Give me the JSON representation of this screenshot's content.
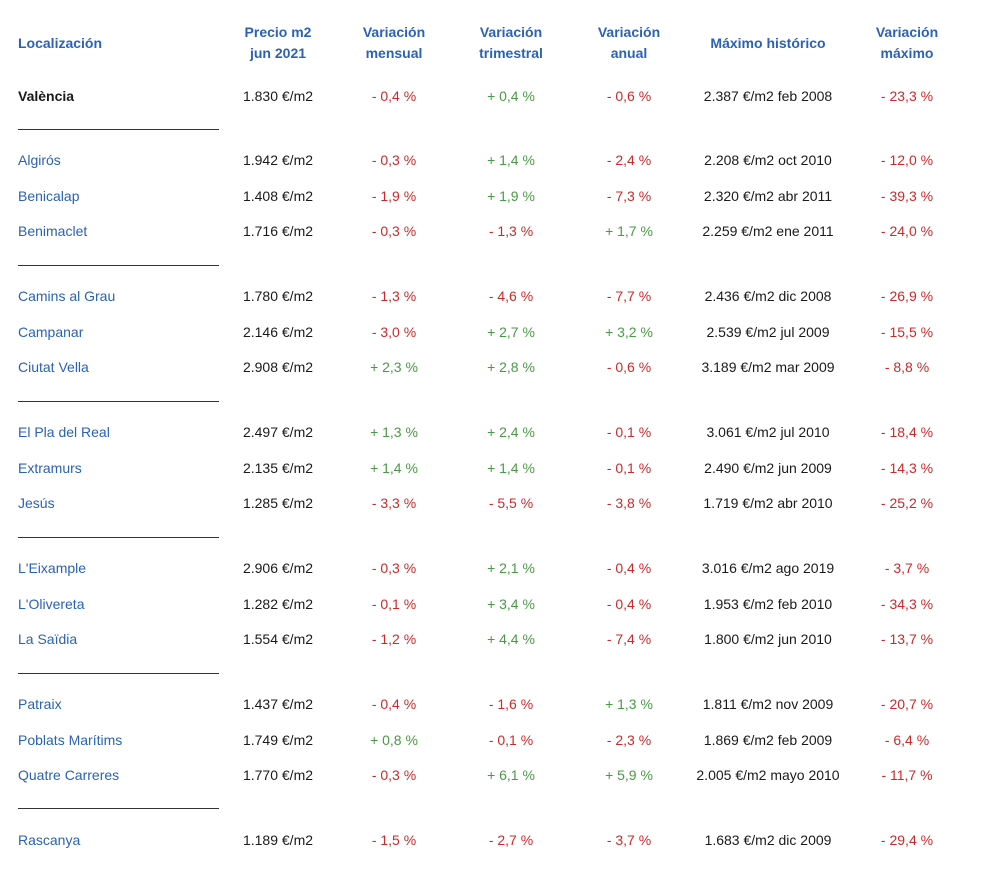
{
  "colors": {
    "header": "#2b62b4",
    "location": "#2b62b4",
    "total": "#1a1a1a",
    "positive": "#4a9a45",
    "negative": "#cc2a2a",
    "text": "#1a1a1a"
  },
  "headers": {
    "location": [
      "Localización"
    ],
    "price": [
      "Precio m2",
      "jun 2021"
    ],
    "monthly": [
      "Variación",
      "mensual"
    ],
    "quarterly": [
      "Variación",
      "trimestral"
    ],
    "annual": [
      "Variación",
      "anual"
    ],
    "max": [
      "Máximo histórico"
    ],
    "max_var": [
      "Variación",
      "máximo"
    ]
  },
  "rows": [
    {
      "loc": "València",
      "price": "1.830 €/m2",
      "m": "- 0,4 %",
      "t": "+ 0,4 %",
      "a": "- 0,6 %",
      "max": "2.387 €/m2 feb 2008",
      "vmax": "- 23,3 %",
      "total": true
    },
    {
      "loc": "Algirós",
      "price": "1.942 €/m2",
      "m": "- 0,3 %",
      "t": "+ 1,4 %",
      "a": "- 2,4 %",
      "max": "2.208 €/m2 oct 2010",
      "vmax": "- 12,0 %"
    },
    {
      "loc": "Benicalap",
      "price": "1.408 €/m2",
      "m": "- 1,9 %",
      "t": "+ 1,9 %",
      "a": "- 7,3 %",
      "max": "2.320 €/m2 abr 2011",
      "vmax": "- 39,3 %"
    },
    {
      "loc": "Benimaclet",
      "price": "1.716 €/m2",
      "m": "- 0,3 %",
      "t": "- 1,3 %",
      "a": "+ 1,7 %",
      "max": "2.259 €/m2 ene 2011",
      "vmax": "- 24,0 %"
    },
    {
      "loc": "Camins al Grau",
      "price": "1.780 €/m2",
      "m": "- 1,3 %",
      "t": "- 4,6 %",
      "a": "- 7,7 %",
      "max": "2.436 €/m2 dic 2008",
      "vmax": "- 26,9 %"
    },
    {
      "loc": "Campanar",
      "price": "2.146 €/m2",
      "m": "- 3,0 %",
      "t": "+ 2,7 %",
      "a": "+ 3,2 %",
      "max": "2.539 €/m2 jul 2009",
      "vmax": "- 15,5 %"
    },
    {
      "loc": "Ciutat Vella",
      "price": "2.908 €/m2",
      "m": "+ 2,3 %",
      "t": "+ 2,8 %",
      "a": "- 0,6 %",
      "max": "3.189 €/m2 mar 2009",
      "vmax": "- 8,8 %"
    },
    {
      "loc": "El Pla del Real",
      "price": "2.497 €/m2",
      "m": "+ 1,3 %",
      "t": "+ 2,4 %",
      "a": "- 0,1 %",
      "max": "3.061 €/m2 jul 2010",
      "vmax": "- 18,4 %"
    },
    {
      "loc": "Extramurs",
      "price": "2.135 €/m2",
      "m": "+ 1,4 %",
      "t": "+ 1,4 %",
      "a": "- 0,1 %",
      "max": "2.490 €/m2 jun 2009",
      "vmax": "- 14,3 %"
    },
    {
      "loc": "Jesús",
      "price": "1.285 €/m2",
      "m": "- 3,3 %",
      "t": "- 5,5 %",
      "a": "- 3,8 %",
      "max": "1.719 €/m2 abr 2010",
      "vmax": "- 25,2 %"
    },
    {
      "loc": "L'Eixample",
      "price": "2.906 €/m2",
      "m": "- 0,3 %",
      "t": "+ 2,1 %",
      "a": "- 0,4 %",
      "max": "3.016 €/m2 ago 2019",
      "vmax": "- 3,7 %"
    },
    {
      "loc": "L'Olivereta",
      "price": "1.282 €/m2",
      "m": "- 0,1 %",
      "t": "+ 3,4 %",
      "a": "- 0,4 %",
      "max": "1.953 €/m2 feb 2010",
      "vmax": "- 34,3 %"
    },
    {
      "loc": "La Saïdia",
      "price": "1.554 €/m2",
      "m": "- 1,2 %",
      "t": "+ 4,4 %",
      "a": "- 7,4 %",
      "max": "1.800 €/m2 jun 2010",
      "vmax": "- 13,7 %"
    },
    {
      "loc": "Patraix",
      "price": "1.437 €/m2",
      "m": "- 0,4 %",
      "t": "- 1,6 %",
      "a": "+ 1,3 %",
      "max": "1.811 €/m2 nov 2009",
      "vmax": "- 20,7 %"
    },
    {
      "loc": "Poblats Marítims",
      "price": "1.749 €/m2",
      "m": "+ 0,8 %",
      "t": "- 0,1 %",
      "a": "- 2,3 %",
      "max": "1.869 €/m2 feb 2009",
      "vmax": "- 6,4 %"
    },
    {
      "loc": "Quatre Carreres",
      "price": "1.770 €/m2",
      "m": "- 0,3 %",
      "t": "+ 6,1 %",
      "a": "+ 5,9 %",
      "max": "2.005 €/m2 mayo 2010",
      "vmax": "- 11,7 %"
    },
    {
      "loc": "Rascanya",
      "price": "1.189 €/m2",
      "m": "- 1,5 %",
      "t": "- 2,7 %",
      "a": "- 3,7 %",
      "max": "1.683 €/m2 dic 2009",
      "vmax": "- 29,4 %"
    }
  ]
}
